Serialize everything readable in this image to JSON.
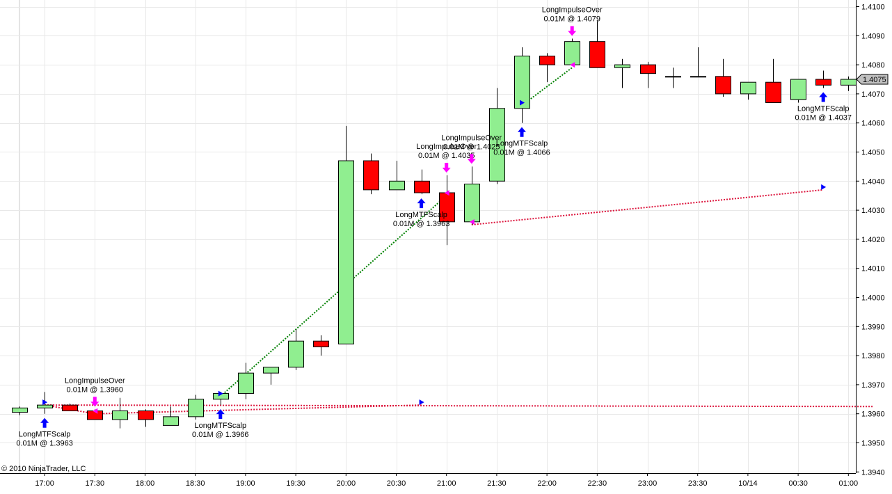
{
  "copyright": "© 2010 NinjaTrader, LLC",
  "colors": {
    "up_fill": "#90EE90",
    "down_fill": "#FF0000",
    "grid": "#e8e8e8",
    "long_arrow": "#0000FF",
    "exit_arrow": "#FF00FF",
    "win_line": "#008000",
    "loss_line": "#DC143C",
    "price_marker": "#c0c0c0"
  },
  "chart_data": {
    "type": "candlestick",
    "instrument_interval_minutes": 15,
    "ylim": [
      1.394,
      1.4105
    ],
    "y_ticks": [
      "1.4100",
      "1.4090",
      "1.4080",
      "1.4070",
      "1.4060",
      "1.4050",
      "1.4040",
      "1.4030",
      "1.4020",
      "1.4010",
      "1.4000",
      "1.3990",
      "1.3980",
      "1.3970",
      "1.3960",
      "1.3950",
      "1.3940"
    ],
    "x_ticks": [
      {
        "label": "17:00",
        "bar": 1
      },
      {
        "label": "17:30",
        "bar": 3
      },
      {
        "label": "18:00",
        "bar": 5
      },
      {
        "label": "18:30",
        "bar": 7
      },
      {
        "label": "19:00",
        "bar": 9
      },
      {
        "label": "19:30",
        "bar": 11
      },
      {
        "label": "20:00",
        "bar": 13
      },
      {
        "label": "20:30",
        "bar": 15
      },
      {
        "label": "21:00",
        "bar": 17
      },
      {
        "label": "21:30",
        "bar": 19
      },
      {
        "label": "22:00",
        "bar": 21
      },
      {
        "label": "22:30",
        "bar": 23
      },
      {
        "label": "23:00",
        "bar": 25
      },
      {
        "label": "23:30",
        "bar": 27
      },
      {
        "label": "10/14",
        "bar": 29
      },
      {
        "label": "00:30",
        "bar": 31
      },
      {
        "label": "01:00",
        "bar": 33
      }
    ],
    "candles": [
      {
        "o": 1.39605,
        "h": 1.39625,
        "l": 1.39595,
        "c": 1.3962
      },
      {
        "o": 1.3962,
        "h": 1.39675,
        "l": 1.396,
        "c": 1.3963
      },
      {
        "o": 1.3963,
        "h": 1.39635,
        "l": 1.3961,
        "c": 1.3961
      },
      {
        "o": 1.3961,
        "h": 1.39615,
        "l": 1.39585,
        "c": 1.3958
      },
      {
        "o": 1.3958,
        "h": 1.39655,
        "l": 1.3955,
        "c": 1.3961
      },
      {
        "o": 1.3961,
        "h": 1.39615,
        "l": 1.39555,
        "c": 1.3958
      },
      {
        "o": 1.3956,
        "h": 1.39625,
        "l": 1.3956,
        "c": 1.3959
      },
      {
        "o": 1.3959,
        "h": 1.39665,
        "l": 1.3958,
        "c": 1.3965
      },
      {
        "o": 1.3965,
        "h": 1.39675,
        "l": 1.3963,
        "c": 1.3967
      },
      {
        "o": 1.3967,
        "h": 1.39775,
        "l": 1.3965,
        "c": 1.3974
      },
      {
        "o": 1.3974,
        "h": 1.3976,
        "l": 1.397,
        "c": 1.3976
      },
      {
        "o": 1.3976,
        "h": 1.3989,
        "l": 1.3975,
        "c": 1.3985
      },
      {
        "o": 1.3985,
        "h": 1.3987,
        "l": 1.398,
        "c": 1.3983
      },
      {
        "o": 1.3984,
        "h": 1.4059,
        "l": 1.3984,
        "c": 1.4047
      },
      {
        "o": 1.4047,
        "h": 1.40495,
        "l": 1.40355,
        "c": 1.4037
      },
      {
        "o": 1.4037,
        "h": 1.4047,
        "l": 1.4037,
        "c": 1.404
      },
      {
        "o": 1.404,
        "h": 1.4044,
        "l": 1.40355,
        "c": 1.4036
      },
      {
        "o": 1.4036,
        "h": 1.4042,
        "l": 1.4018,
        "c": 1.4026
      },
      {
        "o": 1.4026,
        "h": 1.4045,
        "l": 1.4025,
        "c": 1.4039
      },
      {
        "o": 1.404,
        "h": 1.4072,
        "l": 1.4039,
        "c": 1.4065
      },
      {
        "o": 1.4065,
        "h": 1.4086,
        "l": 1.406,
        "c": 1.4083
      },
      {
        "o": 1.4083,
        "h": 1.4084,
        "l": 1.4074,
        "c": 1.408
      },
      {
        "o": 1.408,
        "h": 1.4089,
        "l": 1.408,
        "c": 1.4088
      },
      {
        "o": 1.4088,
        "h": 1.4095,
        "l": 1.4079,
        "c": 1.4079
      },
      {
        "o": 1.4079,
        "h": 1.4082,
        "l": 1.4072,
        "c": 1.408
      },
      {
        "o": 1.408,
        "h": 1.4081,
        "l": 1.4072,
        "c": 1.4077
      },
      {
        "o": 1.4076,
        "h": 1.4079,
        "l": 1.4072,
        "c": 1.4076
      },
      {
        "o": 1.4076,
        "h": 1.4086,
        "l": 1.4076,
        "c": 1.4076
      },
      {
        "o": 1.4076,
        "h": 1.4082,
        "l": 1.4069,
        "c": 1.407
      },
      {
        "o": 1.407,
        "h": 1.4074,
        "l": 1.4068,
        "c": 1.4074
      },
      {
        "o": 1.4074,
        "h": 1.4082,
        "l": 1.4067,
        "c": 1.4067
      },
      {
        "o": 1.4068,
        "h": 1.4075,
        "l": 1.4067,
        "c": 1.4075
      },
      {
        "o": 1.4075,
        "h": 1.4078,
        "l": 1.4072,
        "c": 1.4073
      },
      {
        "o": 1.4073,
        "h": 1.4076,
        "l": 1.4071,
        "c": 1.4075
      }
    ],
    "signals": [
      {
        "kind": "entry",
        "bar": 1,
        "price": 1.3963,
        "lines": [
          "LongMTFScalp",
          "0.01M @ 1.3963"
        ]
      },
      {
        "kind": "exit",
        "bar": 3,
        "price": 1.396,
        "lines": [
          "LongImpulseOver",
          "0.01M @ 1.3960"
        ]
      },
      {
        "kind": "entry",
        "bar": 8,
        "price": 1.3966,
        "lines": [
          "LongMTFScalp",
          "0.01M @ 1.3966"
        ]
      },
      {
        "kind": "entry",
        "bar": 16,
        "price": 1.3963,
        "lines": [
          "LongMTFScalp",
          "0.01M @ 1.3963"
        ]
      },
      {
        "kind": "exit",
        "bar": 17,
        "price": 1.4035,
        "lines": [
          "LongImpulseOver",
          "0.01M @ 1.4035"
        ]
      },
      {
        "kind": "exit",
        "bar": 18,
        "price": 1.4025,
        "lines": [
          "LongImpulseOver",
          "0.01M @ 1.4025"
        ]
      },
      {
        "kind": "entry",
        "bar": 20,
        "price": 1.4066,
        "lines": [
          "LongMTFScalp",
          "0.01M @ 1.4066"
        ]
      },
      {
        "kind": "exit",
        "bar": 22,
        "price": 1.4079,
        "lines": [
          "LongImpulseOver",
          "0.01M @ 1.4079"
        ]
      },
      {
        "kind": "entry",
        "bar": 32,
        "price": 1.4037,
        "lines": [
          "LongMTFScalp",
          "0.01M @ 1.4037"
        ]
      }
    ],
    "trade_lines": [
      {
        "result": "loss",
        "from": {
          "bar": 1,
          "price": 1.3963
        },
        "to": {
          "bar": 3,
          "price": 1.396
        }
      },
      {
        "result": "win",
        "from": {
          "bar": 8,
          "price": 1.3966
        },
        "to": {
          "bar": 17,
          "price": 1.4035
        }
      },
      {
        "result": "loss",
        "from": {
          "bar": 3,
          "price": 1.396
        },
        "to": {
          "bar": 16,
          "price": 1.3963
        }
      },
      {
        "result": "loss",
        "from": {
          "bar": 18,
          "price": 1.4025
        },
        "to": {
          "bar": 32,
          "price": 1.4037
        }
      },
      {
        "result": "win",
        "from": {
          "bar": 20,
          "price": 1.4066
        },
        "to": {
          "bar": 22,
          "price": 1.4079
        }
      },
      {
        "result": "loss",
        "from": {
          "bar": 1,
          "price": 1.3963
        },
        "to": {
          "bar": 34,
          "price": 1.39625
        }
      }
    ],
    "last_price": "1.4075",
    "last_price_value": 1.4075
  }
}
